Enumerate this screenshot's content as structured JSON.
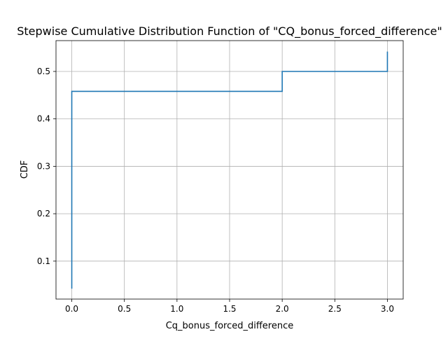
{
  "chart_data": {
    "type": "line",
    "step": true,
    "title": "Stepwise Cumulative Distribution Function of \"CQ_bonus_forced_difference\"",
    "xlabel": "Cq_bonus_forced_difference",
    "ylabel": "CDF",
    "xlim": [
      -0.15,
      3.15
    ],
    "ylim": [
      0.02,
      0.565
    ],
    "xticks": [
      0.0,
      0.5,
      1.0,
      1.5,
      2.0,
      2.5,
      3.0
    ],
    "xtick_labels": [
      "0.0",
      "0.5",
      "1.0",
      "1.5",
      "2.0",
      "2.5",
      "3.0"
    ],
    "yticks": [
      0.1,
      0.2,
      0.3,
      0.4,
      0.5
    ],
    "ytick_labels": [
      "0.1",
      "0.2",
      "0.3",
      "0.4",
      "0.5"
    ],
    "grid": true,
    "series": [
      {
        "color": "#1f77b4",
        "points": [
          {
            "x": 0.0,
            "y": 0.042
          },
          {
            "x": 0.0,
            "y": 0.458
          },
          {
            "x": 2.0,
            "y": 0.458
          },
          {
            "x": 2.0,
            "y": 0.5
          },
          {
            "x": 3.0,
            "y": 0.5
          },
          {
            "x": 3.0,
            "y": 0.542
          }
        ]
      }
    ]
  }
}
